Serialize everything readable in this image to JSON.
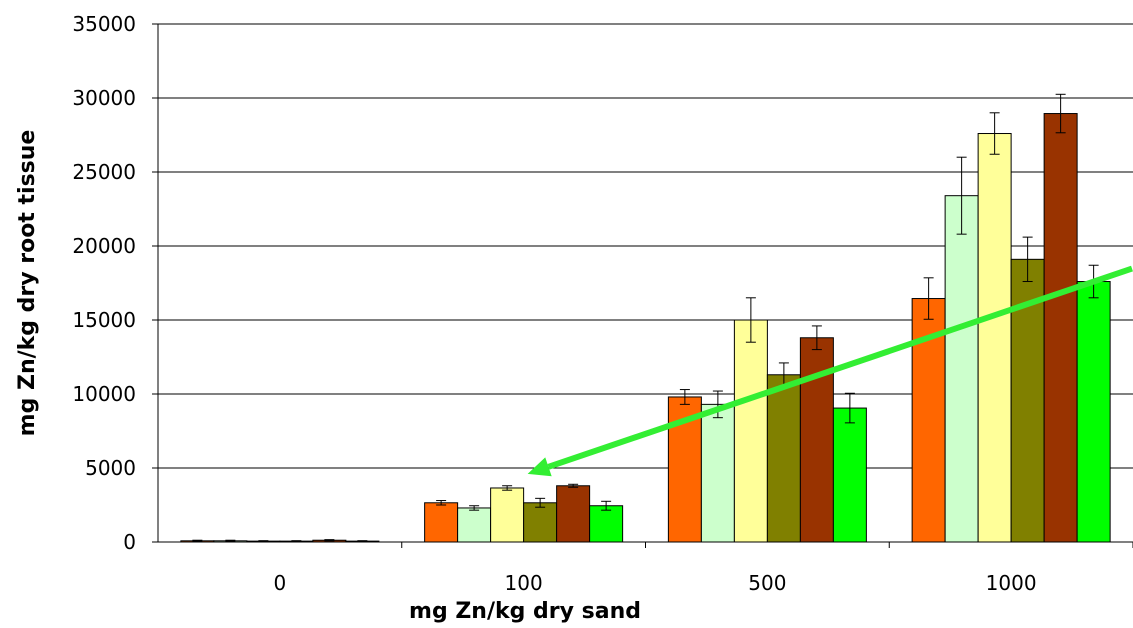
{
  "chart_data": {
    "type": "bar",
    "title": "",
    "xlabel": "mg Zn/kg dry sand",
    "ylabel": "mg Zn/kg dry root tissue",
    "categories": [
      "0",
      "100",
      "500",
      "1000"
    ],
    "ylim": [
      0,
      35000
    ],
    "yticks": [
      0,
      5000,
      10000,
      15000,
      20000,
      25000,
      30000,
      35000
    ],
    "grid": "horizontal",
    "legend": "none",
    "series": [
      {
        "color": "#ff6600",
        "values": [
          80,
          2650,
          9800,
          16450
        ],
        "errors": [
          40,
          150,
          500,
          1400
        ]
      },
      {
        "color": "#ccffcc",
        "values": [
          80,
          2300,
          9300,
          23400
        ],
        "errors": [
          40,
          150,
          900,
          2600
        ]
      },
      {
        "color": "#ffff99",
        "values": [
          60,
          3650,
          15000,
          27600
        ],
        "errors": [
          30,
          150,
          1500,
          1400
        ]
      },
      {
        "color": "#808000",
        "values": [
          60,
          2650,
          11300,
          19100
        ],
        "errors": [
          30,
          300,
          800,
          1500
        ]
      },
      {
        "color": "#993300",
        "values": [
          120,
          3800,
          13800,
          28950
        ],
        "errors": [
          40,
          100,
          800,
          1300
        ]
      },
      {
        "color": "#00ff00",
        "values": [
          60,
          2450,
          9050,
          17600
        ],
        "errors": [
          30,
          300,
          1000,
          1100
        ]
      }
    ],
    "annotations": [
      {
        "type": "arrow",
        "color": "#33ee33",
        "from": {
          "category": "1000",
          "value": 17800
        },
        "to": {
          "category": "100",
          "value": 4600
        }
      }
    ]
  }
}
